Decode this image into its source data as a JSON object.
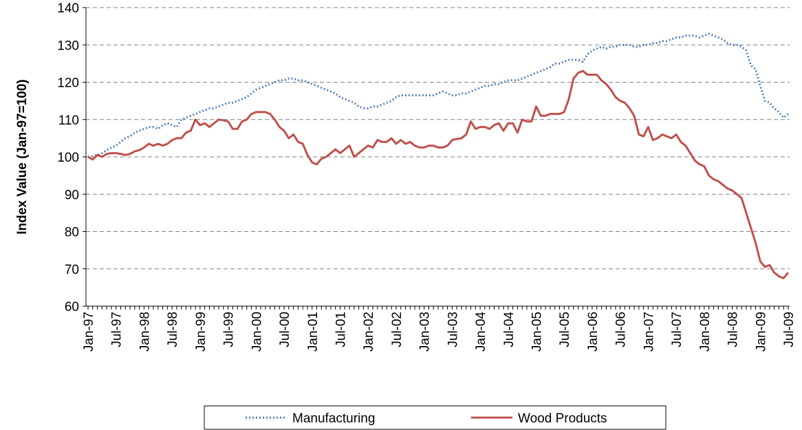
{
  "chart_data": {
    "type": "line",
    "y_label": "Index Value (Jan-97=100)",
    "categories": [
      "Jan-97",
      null,
      null,
      null,
      null,
      null,
      "Jul-97",
      null,
      null,
      null,
      null,
      null,
      "Jan-98",
      null,
      null,
      null,
      null,
      null,
      "Jul-98",
      null,
      null,
      null,
      null,
      null,
      "Jan-99",
      null,
      null,
      null,
      null,
      null,
      "Jul-99",
      null,
      null,
      null,
      null,
      null,
      "Jan-00",
      null,
      null,
      null,
      null,
      null,
      "Jul-00",
      null,
      null,
      null,
      null,
      null,
      "Jan-01",
      null,
      null,
      null,
      null,
      null,
      "Jul-01",
      null,
      null,
      null,
      null,
      null,
      "Jan-02",
      null,
      null,
      null,
      null,
      null,
      "Jul-02",
      null,
      null,
      null,
      null,
      null,
      "Jan-03",
      null,
      null,
      null,
      null,
      null,
      "Jul-03",
      null,
      null,
      null,
      null,
      null,
      "Jan-04",
      null,
      null,
      null,
      null,
      null,
      "Jul-04",
      null,
      null,
      null,
      null,
      null,
      "Jan-05",
      null,
      null,
      null,
      null,
      null,
      "Jul-05",
      null,
      null,
      null,
      null,
      null,
      "Jan-06",
      null,
      null,
      null,
      null,
      null,
      "Jul-06",
      null,
      null,
      null,
      null,
      null,
      "Jan-07",
      null,
      null,
      null,
      null,
      null,
      "Jul-07",
      null,
      null,
      null,
      null,
      null,
      "Jan-08",
      null,
      null,
      null,
      null,
      null,
      "Jul-08",
      null,
      null,
      null,
      null,
      null,
      "Jan-09",
      null,
      null,
      null,
      null,
      null,
      "Jul-09"
    ],
    "series": [
      {
        "name": "Manufacturing",
        "color": "#4f81bd",
        "dash": "dotted",
        "values": [
          100,
          100.2,
          100.5,
          101,
          101.8,
          102.5,
          103,
          104,
          105,
          105.5,
          106.5,
          107,
          107.5,
          108,
          108,
          107.5,
          108.5,
          109,
          108.5,
          108,
          110,
          110.5,
          111,
          111.5,
          112,
          112.5,
          113,
          113,
          113.5,
          114,
          114.5,
          114.5,
          115,
          115.5,
          116,
          117,
          118,
          118.5,
          119,
          119.5,
          120,
          120.5,
          120.5,
          121,
          121,
          120.5,
          120.5,
          120,
          119.5,
          119,
          118.5,
          118,
          117.5,
          117,
          116,
          115.5,
          115,
          114.5,
          113.5,
          113,
          113,
          113.5,
          113.5,
          114,
          114.5,
          115,
          116,
          116.5,
          116.5,
          116.5,
          116.5,
          116.5,
          116.5,
          116.5,
          116.5,
          117,
          117.5,
          117,
          116.5,
          116.5,
          117,
          117,
          117.5,
          118,
          118.5,
          119,
          119,
          119.5,
          119.5,
          120,
          120.5,
          120.5,
          120.5,
          121,
          121.5,
          122,
          122.5,
          123,
          123.5,
          124,
          125,
          125,
          125.5,
          126,
          126,
          126,
          125.5,
          127.5,
          128.5,
          129,
          129.5,
          129,
          129.5,
          129.5,
          130,
          130,
          130,
          129.5,
          129.5,
          130,
          130,
          130.5,
          130.5,
          131,
          131,
          131.5,
          132,
          132,
          132.5,
          132.5,
          132.5,
          132,
          132.5,
          133,
          132.5,
          132,
          131.5,
          130.5,
          130,
          130,
          129.5,
          128.5,
          124.5,
          123.5,
          119,
          115,
          114.5,
          113,
          112,
          110.5,
          111.5
        ]
      },
      {
        "name": "Wood Products",
        "color": "#c0504d",
        "dash": "solid",
        "values": [
          100,
          99.3,
          100.5,
          100,
          100.8,
          101,
          101,
          100.8,
          100.5,
          100.8,
          101.5,
          101.8,
          102.5,
          103.5,
          103,
          103.5,
          103,
          103.5,
          104.5,
          105,
          105,
          106.5,
          107,
          110,
          108.5,
          109,
          108,
          109,
          110,
          109.8,
          109.5,
          107.5,
          107.5,
          109.5,
          110,
          111.5,
          112,
          112,
          112,
          111.5,
          110,
          108,
          107,
          105,
          106,
          104,
          103.5,
          100.5,
          98.5,
          98,
          99.5,
          100,
          101,
          102,
          101,
          102,
          103,
          100,
          101,
          102,
          103,
          102.5,
          104.5,
          104,
          104,
          105,
          103.5,
          104.5,
          103.5,
          104,
          103,
          102.5,
          102.5,
          103,
          103,
          102.5,
          102.5,
          103,
          104.5,
          104.8,
          105,
          106,
          109.5,
          107.5,
          108,
          108,
          107.5,
          108.5,
          109,
          107,
          109,
          109,
          106.5,
          110,
          109.5,
          109.5,
          113.5,
          111,
          111,
          111.5,
          111.5,
          111.5,
          112,
          115.5,
          121,
          122.5,
          123,
          122,
          122,
          122,
          120.5,
          119.5,
          118,
          116,
          115,
          114.5,
          113,
          111,
          106,
          105.5,
          108,
          104.5,
          105,
          106,
          105.5,
          105,
          106,
          104,
          103,
          101,
          99,
          98,
          97.5,
          95,
          94,
          93.5,
          92.5,
          91.5,
          91,
          90,
          89,
          85,
          81,
          77,
          72,
          70.5,
          71,
          69,
          68,
          67.5,
          69
        ]
      }
    ],
    "ylim": [
      60,
      140
    ],
    "yticks": [
      60,
      70,
      80,
      90,
      100,
      110,
      120,
      130,
      140
    ],
    "grid": true,
    "legend": "bottom"
  }
}
